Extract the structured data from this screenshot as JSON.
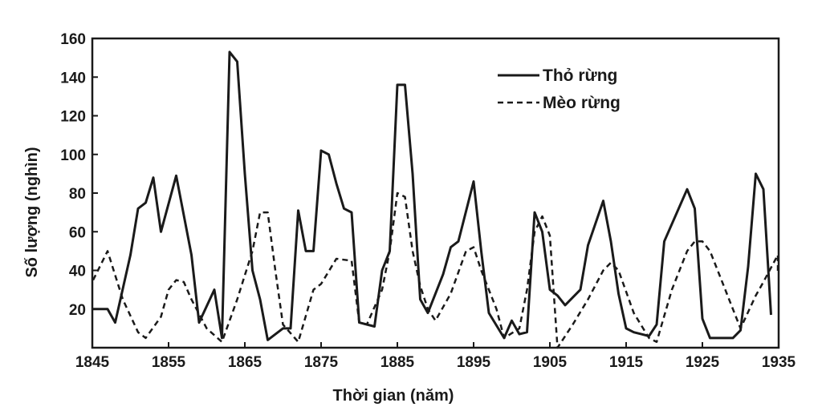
{
  "chart_data": {
    "type": "line",
    "title": "",
    "xlabel": "Thời gian (năm)",
    "ylabel": "Số lượng (nghìn)",
    "xlim": [
      1845,
      1935
    ],
    "ylim": [
      0,
      160
    ],
    "x_ticks": [
      "1845",
      "1855",
      "1865",
      "1875",
      "1885",
      "1895",
      "1905",
      "1915",
      "1925",
      "1935"
    ],
    "y_ticks": [
      "20",
      "40",
      "60",
      "80",
      "100",
      "120",
      "140",
      "160"
    ],
    "legend_position": "top-right",
    "grid": false,
    "series": [
      {
        "name": "Thỏ rừng",
        "style": "solid",
        "color": "#1a1a1a",
        "points": [
          [
            1845,
            20
          ],
          [
            1847,
            20
          ],
          [
            1848,
            13
          ],
          [
            1850,
            48
          ],
          [
            1851,
            72
          ],
          [
            1852,
            75
          ],
          [
            1853,
            88
          ],
          [
            1854,
            60
          ],
          [
            1856,
            89
          ],
          [
            1858,
            48
          ],
          [
            1859,
            13
          ],
          [
            1861,
            30
          ],
          [
            1862,
            5
          ],
          [
            1863,
            153
          ],
          [
            1864,
            148
          ],
          [
            1865,
            90
          ],
          [
            1866,
            40
          ],
          [
            1867,
            25
          ],
          [
            1868,
            4
          ],
          [
            1870,
            10
          ],
          [
            1871,
            10
          ],
          [
            1872,
            71
          ],
          [
            1873,
            50
          ],
          [
            1874,
            50
          ],
          [
            1875,
            102
          ],
          [
            1876,
            100
          ],
          [
            1877,
            85
          ],
          [
            1878,
            72
          ],
          [
            1879,
            70
          ],
          [
            1880,
            13
          ],
          [
            1882,
            11
          ],
          [
            1883,
            40
          ],
          [
            1884,
            50
          ],
          [
            1885,
            136
          ],
          [
            1886,
            136
          ],
          [
            1887,
            90
          ],
          [
            1888,
            25
          ],
          [
            1889,
            18
          ],
          [
            1891,
            38
          ],
          [
            1892,
            52
          ],
          [
            1893,
            55
          ],
          [
            1895,
            86
          ],
          [
            1896,
            50
          ],
          [
            1897,
            18
          ],
          [
            1899,
            5
          ],
          [
            1900,
            14
          ],
          [
            1901,
            7
          ],
          [
            1902,
            8
          ],
          [
            1903,
            70
          ],
          [
            1904,
            60
          ],
          [
            1905,
            30
          ],
          [
            1906,
            27
          ],
          [
            1907,
            22
          ],
          [
            1909,
            30
          ],
          [
            1910,
            53
          ],
          [
            1912,
            76
          ],
          [
            1913,
            55
          ],
          [
            1914,
            28
          ],
          [
            1915,
            10
          ],
          [
            1916,
            8
          ],
          [
            1917,
            7
          ],
          [
            1918,
            6
          ],
          [
            1919,
            12
          ],
          [
            1920,
            55
          ],
          [
            1923,
            82
          ],
          [
            1924,
            72
          ],
          [
            1925,
            15
          ],
          [
            1926,
            5
          ],
          [
            1929,
            5
          ],
          [
            1930,
            9
          ],
          [
            1931,
            42
          ],
          [
            1932,
            90
          ],
          [
            1933,
            82
          ],
          [
            1934,
            17
          ]
        ]
      },
      {
        "name": "Mèo rừng",
        "style": "dashed",
        "color": "#1a1a1a",
        "points": [
          [
            1845,
            35
          ],
          [
            1847,
            50
          ],
          [
            1849,
            25
          ],
          [
            1851,
            8
          ],
          [
            1852,
            5
          ],
          [
            1854,
            16
          ],
          [
            1855,
            30
          ],
          [
            1856,
            35
          ],
          [
            1857,
            34
          ],
          [
            1858,
            25
          ],
          [
            1860,
            10
          ],
          [
            1862,
            3
          ],
          [
            1864,
            25
          ],
          [
            1866,
            50
          ],
          [
            1867,
            70
          ],
          [
            1868,
            70
          ],
          [
            1869,
            40
          ],
          [
            1870,
            12
          ],
          [
            1872,
            3
          ],
          [
            1874,
            30
          ],
          [
            1875,
            33
          ],
          [
            1877,
            46
          ],
          [
            1879,
            45
          ],
          [
            1880,
            13
          ],
          [
            1881,
            12
          ],
          [
            1883,
            30
          ],
          [
            1884,
            50
          ],
          [
            1885,
            80
          ],
          [
            1886,
            78
          ],
          [
            1887,
            50
          ],
          [
            1888,
            32
          ],
          [
            1889,
            20
          ],
          [
            1890,
            14
          ],
          [
            1892,
            28
          ],
          [
            1894,
            50
          ],
          [
            1895,
            52
          ],
          [
            1896,
            40
          ],
          [
            1898,
            20
          ],
          [
            1899,
            5
          ],
          [
            1901,
            10
          ],
          [
            1902,
            30
          ],
          [
            1903,
            60
          ],
          [
            1904,
            68
          ],
          [
            1905,
            58
          ],
          [
            1906,
            0
          ],
          [
            1908,
            12
          ],
          [
            1910,
            25
          ],
          [
            1912,
            40
          ],
          [
            1913,
            44
          ],
          [
            1914,
            40
          ],
          [
            1916,
            18
          ],
          [
            1918,
            5
          ],
          [
            1919,
            3
          ],
          [
            1921,
            30
          ],
          [
            1923,
            50
          ],
          [
            1924,
            55
          ],
          [
            1925,
            55
          ],
          [
            1926,
            50
          ],
          [
            1928,
            30
          ],
          [
            1929,
            20
          ],
          [
            1930,
            10
          ],
          [
            1932,
            27
          ],
          [
            1933,
            34
          ],
          [
            1935,
            48
          ],
          [
            1936,
            38
          ]
        ]
      }
    ]
  }
}
